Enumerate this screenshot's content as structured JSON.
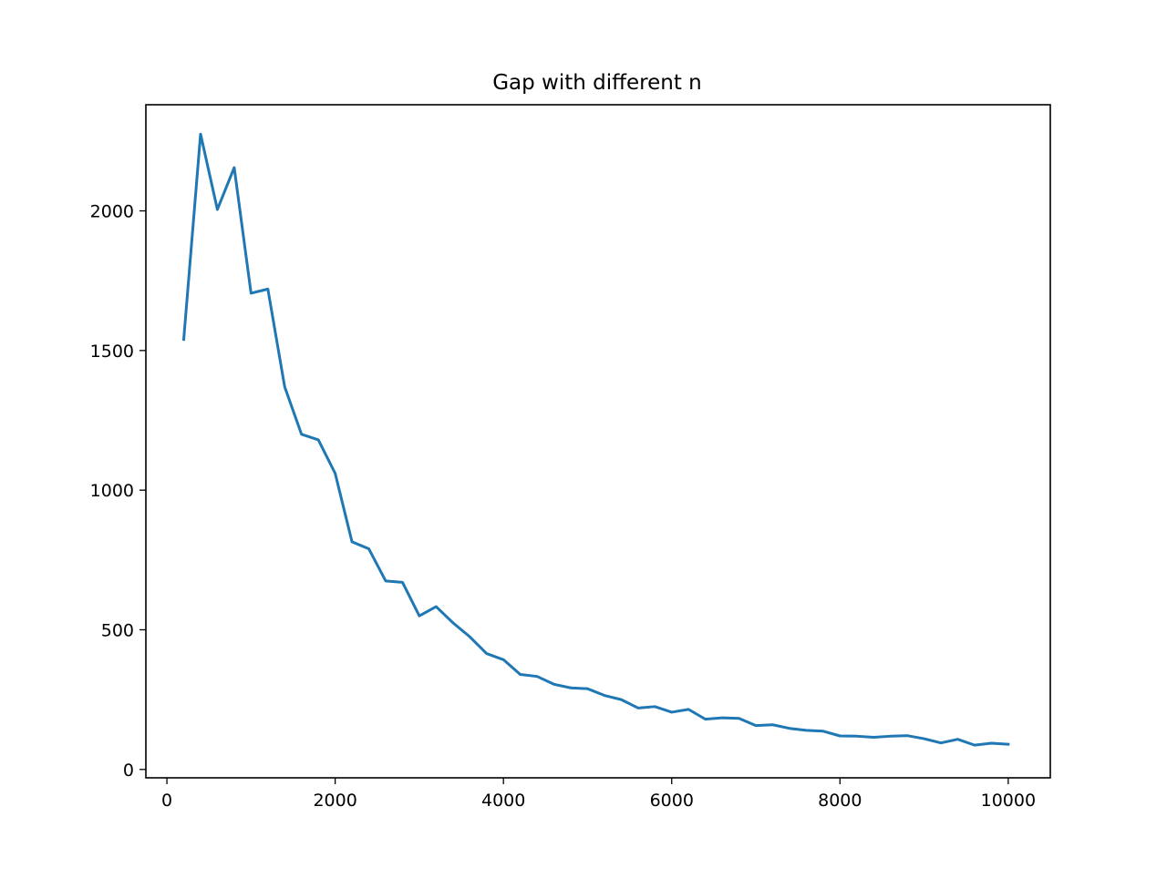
{
  "chart_data": {
    "type": "line",
    "title": "Gap with different n",
    "xlabel": "",
    "ylabel": "",
    "xlim": [
      -250,
      10500
    ],
    "ylim": [
      -30,
      2380
    ],
    "grid": false,
    "legend": "none",
    "x_ticks": [
      {
        "value": 0,
        "label": "0"
      },
      {
        "value": 2000,
        "label": "2000"
      },
      {
        "value": 4000,
        "label": "4000"
      },
      {
        "value": 6000,
        "label": "6000"
      },
      {
        "value": 8000,
        "label": "8000"
      },
      {
        "value": 10000,
        "label": "10000"
      }
    ],
    "y_ticks": [
      {
        "value": 0,
        "label": "0"
      },
      {
        "value": 500,
        "label": "500"
      },
      {
        "value": 1000,
        "label": "1000"
      },
      {
        "value": 1500,
        "label": "1500"
      },
      {
        "value": 2000,
        "label": "2000"
      }
    ],
    "series": [
      {
        "color": "#1f77b4",
        "x": [
          200,
          400,
          600,
          800,
          1000,
          1200,
          1400,
          1600,
          1800,
          2000,
          2200,
          2400,
          2600,
          2800,
          3000,
          3200,
          3400,
          3600,
          3800,
          4000,
          4200,
          4400,
          4600,
          4800,
          5000,
          5200,
          5400,
          5600,
          5800,
          6000,
          6200,
          6400,
          6600,
          6800,
          7000,
          7200,
          7400,
          7600,
          7800,
          8000,
          8200,
          8400,
          8600,
          8800,
          9000,
          9200,
          9400,
          9600,
          9800,
          10000
        ],
        "y": [
          1540,
          2275,
          2005,
          2155,
          1705,
          1720,
          1370,
          1200,
          1180,
          1060,
          815,
          790,
          675,
          670,
          550,
          583,
          525,
          475,
          415,
          393,
          340,
          333,
          305,
          292,
          289,
          265,
          250,
          220,
          225,
          205,
          215,
          180,
          185,
          183,
          157,
          160,
          147,
          140,
          137,
          120,
          119,
          115,
          119,
          121,
          110,
          95,
          108,
          87,
          94,
          90
        ]
      }
    ]
  }
}
